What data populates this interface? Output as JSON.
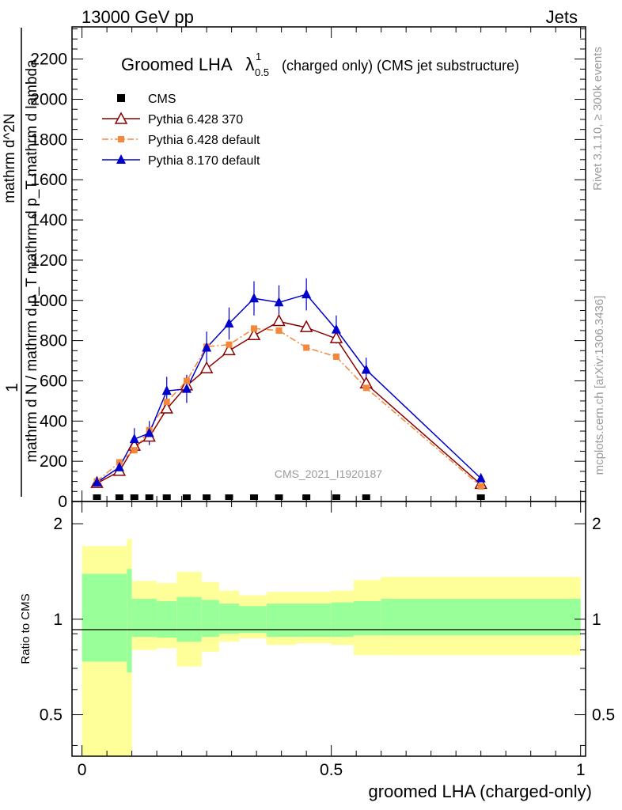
{
  "header": {
    "energy_label": "13000 GeV pp",
    "category_label": "Jets"
  },
  "side_labels": {
    "rivet": "Rivet 3.1.10, ≥ 300k events",
    "mcplots": "mcplots.cern.ch [arXiv:1306.3436]"
  },
  "chart_data": {
    "type": "line",
    "title": "Groomed LHA",
    "title_symbol": "λ",
    "title_superscript": "1",
    "title_subscript": "0.5",
    "title_suffix": "(charged only) (CMS jet substructure)",
    "analysis_tag": "CMS_2021_I1920187",
    "xlabel": "groomed LHA (charged-only)",
    "ylabel_numerator": "1",
    "ylabel_denominator": "mathrm d N / mathrm d p_T mathrm d p_T mathrm d lambda",
    "ylabel_top": "mathrm d^2N",
    "xlim": [
      -0.02,
      1.01
    ],
    "ylim": [
      0,
      2360
    ],
    "x_ticks": [
      0,
      0.5,
      1
    ],
    "x_tick_labels": [
      "0",
      "0.5",
      "1"
    ],
    "y_ticks": [
      0,
      200,
      400,
      600,
      800,
      1000,
      1200,
      1400,
      1600,
      1800,
      2000,
      2200
    ],
    "y_tick_labels": [
      "0",
      "200",
      "400",
      "600",
      "800",
      "1000",
      "1200",
      "1400",
      "1600",
      "1800",
      "2000",
      "2200"
    ],
    "series": [
      {
        "name": "CMS",
        "color": "#000000",
        "marker": "square",
        "x": [
          0.03,
          0.075,
          0.105,
          0.135,
          0.17,
          0.21,
          0.25,
          0.295,
          0.345,
          0.395,
          0.45,
          0.51,
          0.57,
          0.8
        ],
        "y": [
          0,
          0,
          0,
          0,
          0,
          0,
          0,
          0,
          0,
          0,
          0,
          0,
          0,
          0
        ]
      },
      {
        "name": "Pythia 6.428 370",
        "color": "#8b0000",
        "marker": "open-triangle",
        "line": "solid",
        "x": [
          0.03,
          0.075,
          0.105,
          0.135,
          0.17,
          0.21,
          0.25,
          0.295,
          0.345,
          0.395,
          0.45,
          0.51,
          0.57,
          0.8
        ],
        "y": [
          90,
          150,
          275,
          320,
          460,
          575,
          660,
          750,
          825,
          895,
          865,
          810,
          585,
          85
        ]
      },
      {
        "name": "Pythia 6.428 default",
        "color": "#f4873a",
        "marker": "square",
        "line": "dashdot",
        "x": [
          0.03,
          0.075,
          0.105,
          0.135,
          0.17,
          0.21,
          0.25,
          0.295,
          0.345,
          0.395,
          0.45,
          0.51,
          0.57,
          0.8
        ],
        "y": [
          100,
          195,
          255,
          355,
          495,
          600,
          770,
          780,
          860,
          850,
          765,
          720,
          565,
          75
        ]
      },
      {
        "name": "Pythia 8.170 default",
        "color": "#0000cc",
        "marker": "filled-triangle",
        "line": "solid",
        "x": [
          0.03,
          0.075,
          0.105,
          0.135,
          0.17,
          0.21,
          0.25,
          0.295,
          0.345,
          0.395,
          0.45,
          0.51,
          0.57,
          0.8
        ],
        "y": [
          95,
          170,
          310,
          340,
          550,
          560,
          765,
          885,
          1010,
          990,
          1030,
          855,
          655,
          115
        ],
        "yerr": [
          25,
          40,
          55,
          60,
          70,
          70,
          80,
          80,
          85,
          85,
          80,
          70,
          60,
          20
        ]
      }
    ],
    "ratio": {
      "ylabel": "Ratio to CMS",
      "ylim": [
        0.37,
        2.35
      ],
      "y_ticks": [
        0.5,
        1,
        2
      ],
      "y_tick_labels": [
        "0.5",
        "1",
        "2"
      ],
      "bin_edges": [
        0,
        0.09,
        0.1,
        0.15,
        0.19,
        0.24,
        0.275,
        0.315,
        0.37,
        0.43,
        0.5,
        0.545,
        0.6,
        1.0
      ],
      "inner_band_lo": [
        0.735,
        0.68,
        0.88,
        0.875,
        0.85,
        0.88,
        0.9,
        0.905,
        0.88,
        0.88,
        0.88,
        0.89,
        0.89
      ],
      "inner_band_hi": [
        1.39,
        1.44,
        1.16,
        1.14,
        1.175,
        1.15,
        1.12,
        1.1,
        1.12,
        1.12,
        1.13,
        1.14,
        1.16
      ],
      "outer_band_lo": [
        0,
        0,
        0.8,
        0.81,
        0.71,
        0.79,
        0.85,
        0.87,
        0.83,
        0.84,
        0.83,
        0.77,
        0.77
      ],
      "outer_band_hi": [
        1.7,
        1.79,
        1.32,
        1.3,
        1.41,
        1.31,
        1.23,
        1.19,
        1.22,
        1.22,
        1.23,
        1.33,
        1.36
      ]
    }
  }
}
